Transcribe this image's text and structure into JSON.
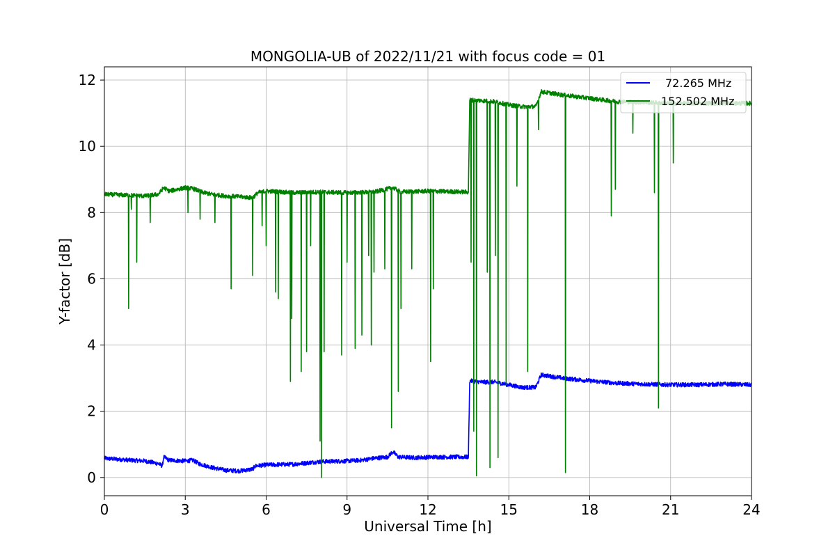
{
  "chart_data": {
    "type": "line",
    "title": "MONGOLIA-UB of 2022/11/21 with focus code = 01",
    "xlabel": "Universal Time [h]",
    "ylabel": "Y-factor [dB]",
    "xlim": [
      0,
      24
    ],
    "ylim": [
      -0.55,
      12.4
    ],
    "xticks": [
      0,
      3,
      6,
      9,
      12,
      15,
      18,
      21,
      24
    ],
    "xtick_labels": [
      "0",
      "3",
      "6",
      "9",
      "12",
      "15",
      "18",
      "21",
      "24"
    ],
    "yticks": [
      0,
      2,
      4,
      6,
      8,
      10,
      12
    ],
    "ytick_labels": [
      "0",
      "2",
      "4",
      "6",
      "8",
      "10",
      "12"
    ],
    "grid": true,
    "legend_position": "top-right",
    "series": [
      {
        "name": "72.265 MHz",
        "color": "#0000ff",
        "base": [
          [
            0,
            0.58
          ],
          [
            0.5,
            0.55
          ],
          [
            1.0,
            0.52
          ],
          [
            1.5,
            0.5
          ],
          [
            2.0,
            0.42
          ],
          [
            2.15,
            0.35
          ],
          [
            2.2,
            0.62
          ],
          [
            2.4,
            0.52
          ],
          [
            3.0,
            0.5
          ],
          [
            3.3,
            0.52
          ],
          [
            3.5,
            0.42
          ],
          [
            4.0,
            0.3
          ],
          [
            4.5,
            0.22
          ],
          [
            5.0,
            0.2
          ],
          [
            5.5,
            0.25
          ],
          [
            5.6,
            0.35
          ],
          [
            6.0,
            0.38
          ],
          [
            7.0,
            0.4
          ],
          [
            8.0,
            0.48
          ],
          [
            9.0,
            0.5
          ],
          [
            9.5,
            0.52
          ],
          [
            10.0,
            0.58
          ],
          [
            10.5,
            0.62
          ],
          [
            10.7,
            0.78
          ],
          [
            10.9,
            0.62
          ],
          [
            11.5,
            0.6
          ],
          [
            12.3,
            0.62
          ],
          [
            13.4,
            0.62
          ],
          [
            13.5,
            0.62
          ],
          [
            13.55,
            2.92
          ],
          [
            14.0,
            2.88
          ],
          [
            14.5,
            2.88
          ],
          [
            15.0,
            2.8
          ],
          [
            15.5,
            2.72
          ],
          [
            16.0,
            2.72
          ],
          [
            16.2,
            3.1
          ],
          [
            17.0,
            3.0
          ],
          [
            18.0,
            2.92
          ],
          [
            19.0,
            2.85
          ],
          [
            20.0,
            2.82
          ],
          [
            21.0,
            2.8
          ],
          [
            22.0,
            2.8
          ],
          [
            23.0,
            2.82
          ],
          [
            24.0,
            2.8
          ]
        ]
      },
      {
        "name": "152.502 MHz",
        "color": "#008000",
        "base": [
          [
            0,
            8.55
          ],
          [
            1.0,
            8.52
          ],
          [
            1.5,
            8.5
          ],
          [
            2.0,
            8.55
          ],
          [
            2.2,
            8.75
          ],
          [
            2.4,
            8.65
          ],
          [
            3.0,
            8.75
          ],
          [
            3.3,
            8.72
          ],
          [
            3.6,
            8.62
          ],
          [
            4.0,
            8.55
          ],
          [
            4.5,
            8.5
          ],
          [
            5.0,
            8.48
          ],
          [
            5.5,
            8.45
          ],
          [
            5.7,
            8.6
          ],
          [
            6.0,
            8.65
          ],
          [
            7.0,
            8.6
          ],
          [
            8.0,
            8.62
          ],
          [
            9.0,
            8.6
          ],
          [
            10.0,
            8.62
          ],
          [
            10.7,
            8.75
          ],
          [
            11.0,
            8.62
          ],
          [
            12.0,
            8.65
          ],
          [
            13.4,
            8.62
          ],
          [
            13.5,
            8.62
          ],
          [
            13.55,
            11.4
          ],
          [
            14.0,
            11.38
          ],
          [
            14.5,
            11.35
          ],
          [
            15.0,
            11.25
          ],
          [
            15.5,
            11.2
          ],
          [
            16.0,
            11.2
          ],
          [
            16.2,
            11.65
          ],
          [
            17.0,
            11.55
          ],
          [
            18.0,
            11.45
          ],
          [
            19.0,
            11.35
          ],
          [
            20.0,
            11.33
          ],
          [
            21.0,
            11.3
          ],
          [
            22.0,
            11.3
          ],
          [
            23.0,
            11.3
          ],
          [
            24.0,
            11.3
          ]
        ],
        "dips": [
          [
            0.9,
            5.1
          ],
          [
            1.0,
            8.1
          ],
          [
            1.2,
            6.5
          ],
          [
            1.7,
            7.7
          ],
          [
            3.1,
            8.0
          ],
          [
            3.55,
            7.8
          ],
          [
            4.1,
            7.7
          ],
          [
            4.7,
            5.7
          ],
          [
            5.5,
            6.1
          ],
          [
            5.85,
            7.6
          ],
          [
            6.0,
            7.0
          ],
          [
            6.35,
            5.6
          ],
          [
            6.45,
            5.4
          ],
          [
            6.9,
            2.9
          ],
          [
            6.95,
            4.8
          ],
          [
            7.3,
            3.2
          ],
          [
            7.5,
            3.8
          ],
          [
            7.65,
            7.0
          ],
          [
            8.0,
            1.1
          ],
          [
            8.05,
            0.0
          ],
          [
            8.15,
            3.8
          ],
          [
            8.8,
            3.7
          ],
          [
            9.0,
            6.5
          ],
          [
            9.3,
            3.9
          ],
          [
            9.55,
            4.3
          ],
          [
            9.8,
            6.7
          ],
          [
            9.9,
            4.0
          ],
          [
            10.0,
            6.2
          ],
          [
            10.4,
            6.3
          ],
          [
            10.65,
            1.5
          ],
          [
            10.9,
            2.6
          ],
          [
            11.0,
            5.1
          ],
          [
            11.4,
            6.3
          ],
          [
            12.1,
            3.5
          ],
          [
            12.2,
            5.7
          ],
          [
            13.6,
            6.5
          ],
          [
            13.7,
            1.4
          ],
          [
            13.8,
            0.05
          ],
          [
            14.2,
            6.2
          ],
          [
            14.3,
            0.3
          ],
          [
            14.5,
            6.7
          ],
          [
            14.6,
            0.6
          ],
          [
            14.9,
            2.8
          ],
          [
            15.3,
            8.8
          ],
          [
            15.7,
            3.2
          ],
          [
            16.1,
            10.5
          ],
          [
            17.1,
            0.15
          ],
          [
            18.8,
            7.9
          ],
          [
            18.95,
            8.7
          ],
          [
            19.6,
            10.4
          ],
          [
            20.4,
            8.6
          ],
          [
            20.55,
            2.1
          ],
          [
            21.1,
            9.5
          ]
        ]
      }
    ]
  }
}
